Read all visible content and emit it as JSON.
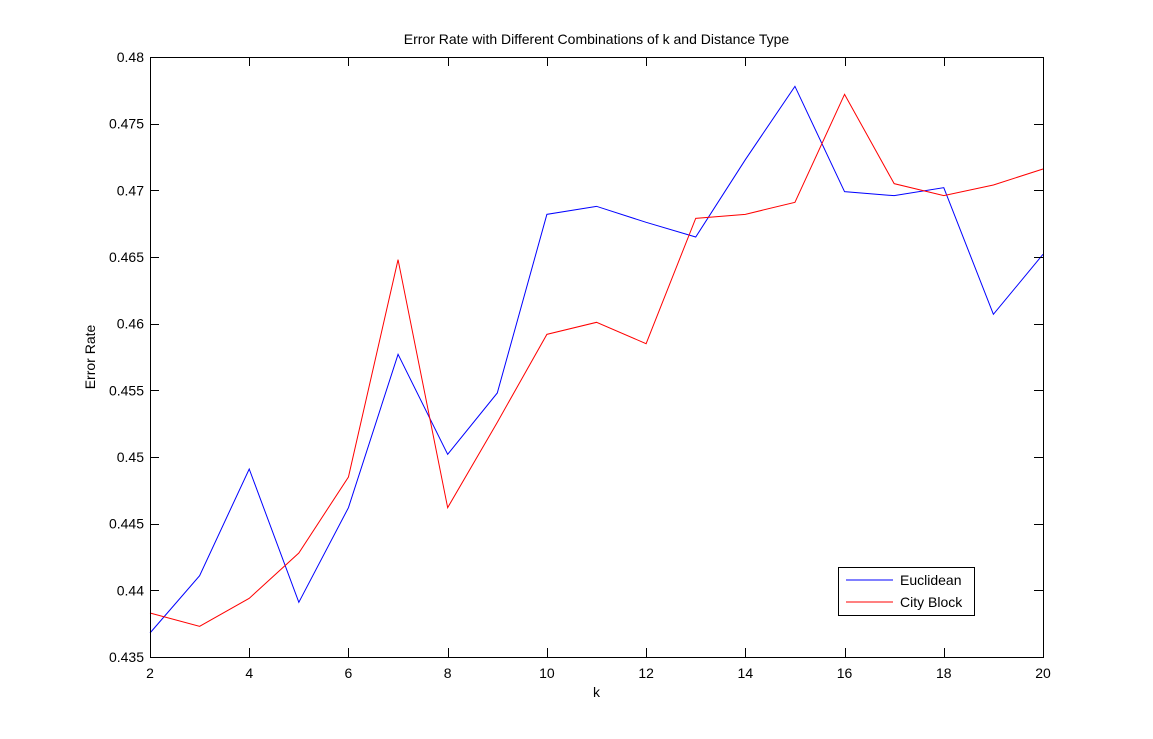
{
  "chart_data": {
    "type": "line",
    "title": "Error Rate with Different Combinations of k and Distance Type",
    "xlabel": "k",
    "ylabel": "Error Rate",
    "xlim": [
      2,
      20
    ],
    "ylim": [
      0.435,
      0.48
    ],
    "xticks": [
      2,
      4,
      6,
      8,
      10,
      12,
      14,
      16,
      18,
      20
    ],
    "yticks": [
      0.435,
      0.44,
      0.445,
      0.45,
      0.455,
      0.46,
      0.465,
      0.47,
      0.475,
      0.48
    ],
    "grid": false,
    "legend_position": "bottom-right",
    "x": [
      2,
      3,
      4,
      5,
      6,
      7,
      8,
      9,
      10,
      11,
      12,
      13,
      14,
      15,
      16,
      17,
      18,
      19,
      20
    ],
    "series": [
      {
        "name": "Euclidean",
        "color": "#0000ff",
        "values": [
          0.4368,
          0.4411,
          0.4491,
          0.4391,
          0.4462,
          0.4577,
          0.4502,
          0.4548,
          0.4682,
          0.4688,
          0.4676,
          0.4665,
          0.4723,
          0.4778,
          0.4699,
          0.4696,
          0.4702,
          0.4607,
          0.4652
        ]
      },
      {
        "name": "City Block",
        "color": "#ff0000",
        "values": [
          0.4383,
          0.4373,
          0.4394,
          0.4428,
          0.4485,
          0.4648,
          0.4462,
          0.4526,
          0.4592,
          0.4601,
          0.4585,
          0.4679,
          0.4682,
          0.4691,
          0.4772,
          0.4705,
          0.4696,
          0.4704,
          0.4716
        ]
      }
    ]
  }
}
